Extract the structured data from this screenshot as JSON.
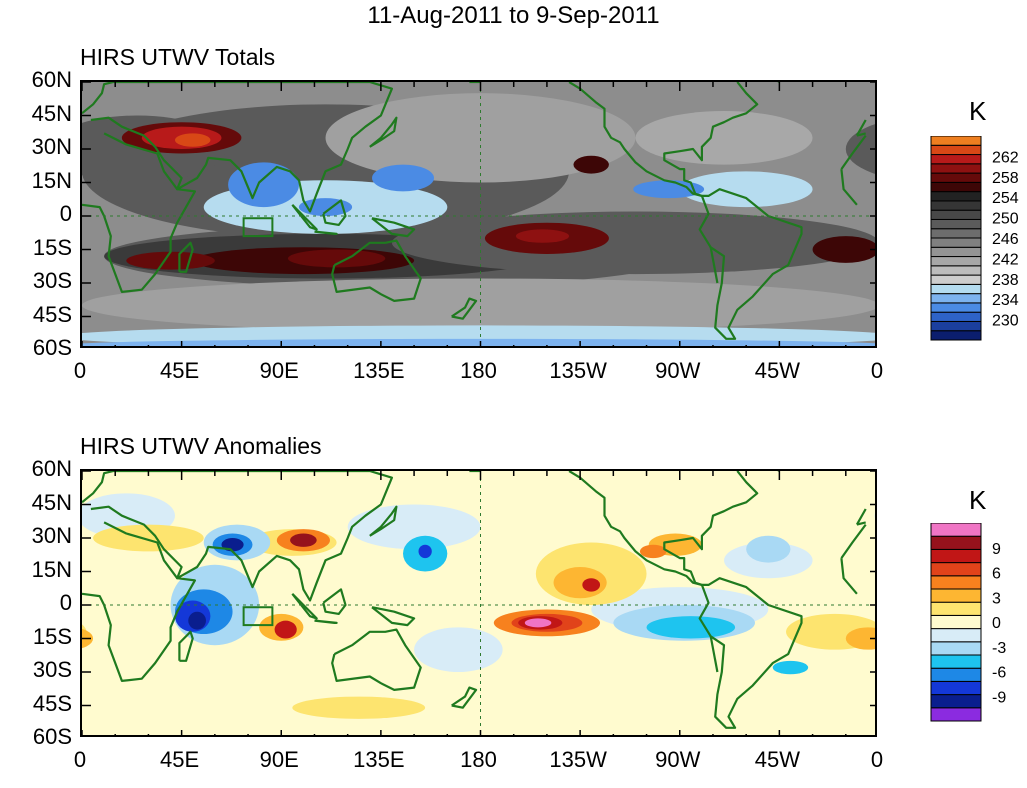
{
  "header": {
    "title": "11-Aug-2011 to 9-Sep-2011"
  },
  "lat_labels": [
    "60N",
    "45N",
    "30N",
    "15N",
    "0",
    "15S",
    "30S",
    "45S",
    "60S"
  ],
  "lon_labels": [
    "0",
    "45E",
    "90E",
    "135E",
    "180",
    "135W",
    "90W",
    "45W",
    "0"
  ],
  "totals": {
    "title": "HIRS UTWV Totals",
    "unit": "K",
    "colorbar": {
      "colors": [
        "#0b1e6e",
        "#1b3f9e",
        "#2e63c7",
        "#4b8be4",
        "#7db3ef",
        "#b4dcf0",
        "#cdcdcd",
        "#bcbcbc",
        "#a7a7a7",
        "#949494",
        "#808080",
        "#6d6d6d",
        "#5b5b5b",
        "#484848",
        "#353535",
        "#222222",
        "#3d0606",
        "#650a0a",
        "#8e1111",
        "#b81a1a",
        "#d84816",
        "#ee7f20"
      ],
      "labels": [
        "262",
        "258",
        "254",
        "250",
        "246",
        "242",
        "238",
        "234",
        "230"
      ]
    },
    "background": "#8d8d8d",
    "features": [
      {
        "c": "#5a5a5a",
        "lon": 110,
        "lat": 20,
        "rx": 110,
        "ry": 30
      },
      {
        "c": "#5a5a5a",
        "lon": 140,
        "lat": -18,
        "rx": 130,
        "ry": 14
      },
      {
        "c": "#3a3a3a",
        "lon": 110,
        "lat": -18,
        "rx": 100,
        "ry": 10
      },
      {
        "c": "#5a5a5a",
        "lon": 250,
        "lat": -12,
        "rx": 110,
        "ry": 14
      },
      {
        "c": "#5a5a5a",
        "lon": 25,
        "lat": 30,
        "rx": 40,
        "ry": 15
      },
      {
        "c": "#a0a0a0",
        "lon": 180,
        "lat": 35,
        "rx": 70,
        "ry": 20
      },
      {
        "c": "#a8a8a8",
        "lon": 290,
        "lat": 35,
        "rx": 40,
        "ry": 12
      },
      {
        "c": "#a0a0a0",
        "lon": 180,
        "lat": -40,
        "rx": 180,
        "ry": 12
      },
      {
        "c": "#b6dcef",
        "lon": 180,
        "lat": -54,
        "rx": 190,
        "ry": 5
      },
      {
        "c": "#7db3ef",
        "lon": 180,
        "lat": -58,
        "rx": 190,
        "ry": 3
      },
      {
        "c": "#b6dcef",
        "lon": 110,
        "lat": 4,
        "rx": 55,
        "ry": 12
      },
      {
        "c": "#b6dcef",
        "lon": 300,
        "lat": 12,
        "rx": 30,
        "ry": 8
      },
      {
        "c": "#4b8be4",
        "lon": 82,
        "lat": 14,
        "rx": 16,
        "ry": 10
      },
      {
        "c": "#4b8be4",
        "lon": 145,
        "lat": 17,
        "rx": 14,
        "ry": 6
      },
      {
        "c": "#4b8be4",
        "lon": 110,
        "lat": 4,
        "rx": 12,
        "ry": 4
      },
      {
        "c": "#4b8be4",
        "lon": 265,
        "lat": 12,
        "rx": 16,
        "ry": 4
      },
      {
        "c": "#650a0a",
        "lon": 45,
        "lat": 35,
        "rx": 27,
        "ry": 7
      },
      {
        "c": "#b81a1a",
        "lon": 45,
        "lat": 35,
        "rx": 18,
        "ry": 5
      },
      {
        "c": "#d84816",
        "lon": 50,
        "lat": 34,
        "rx": 8,
        "ry": 3
      },
      {
        "c": "#3d0606",
        "lon": 100,
        "lat": -20,
        "rx": 50,
        "ry": 6
      },
      {
        "c": "#650a0a",
        "lon": 115,
        "lat": -19,
        "rx": 22,
        "ry": 4
      },
      {
        "c": "#650a0a",
        "lon": 40,
        "lat": -20,
        "rx": 20,
        "ry": 4
      },
      {
        "c": "#650a0a",
        "lon": 210,
        "lat": -10,
        "rx": 28,
        "ry": 7
      },
      {
        "c": "#8e1111",
        "lon": 208,
        "lat": -9,
        "rx": 12,
        "ry": 3
      },
      {
        "c": "#3d0606",
        "lon": 345,
        "lat": -15,
        "rx": 15,
        "ry": 6
      },
      {
        "c": "#3d0606",
        "lon": 230,
        "lat": 23,
        "rx": 8,
        "ry": 4
      }
    ]
  },
  "anomalies": {
    "title": "HIRS UTWV Anomalies",
    "unit": "K",
    "colorbar": {
      "colors": [
        "#8b2be0",
        "#0a1e8e",
        "#1438d8",
        "#1e88e6",
        "#1ec4ef",
        "#a9d9f4",
        "#d8ecf7",
        "#fffbcf",
        "#fde46f",
        "#fdb632",
        "#f7811e",
        "#e1431a",
        "#c11616",
        "#96121c",
        "#f075c5"
      ],
      "labels": [
        "9",
        "6",
        "3",
        "0",
        "-3",
        "-6",
        "-9"
      ]
    },
    "background": "#fffbcf",
    "features": [
      {
        "c": "#d8ecf7",
        "lon": 20,
        "lat": 40,
        "rx": 22,
        "ry": 10
      },
      {
        "c": "#d8ecf7",
        "lon": 150,
        "lat": 35,
        "rx": 30,
        "ry": 10
      },
      {
        "c": "#d8ecf7",
        "lon": 170,
        "lat": -20,
        "rx": 20,
        "ry": 10
      },
      {
        "c": "#d8ecf7",
        "lon": 270,
        "lat": -2,
        "rx": 40,
        "ry": 10
      },
      {
        "c": "#d8ecf7",
        "lon": 310,
        "lat": 20,
        "rx": 20,
        "ry": 8
      },
      {
        "c": "#fde46f",
        "lon": 230,
        "lat": 14,
        "rx": 25,
        "ry": 14
      },
      {
        "c": "#fde46f",
        "lon": 340,
        "lat": -12,
        "rx": 22,
        "ry": 8
      },
      {
        "c": "#fde46f",
        "lon": 125,
        "lat": -46,
        "rx": 30,
        "ry": 5
      },
      {
        "c": "#fde46f",
        "lon": 30,
        "lat": 30,
        "rx": 25,
        "ry": 6
      },
      {
        "c": "#fde46f",
        "lon": 95,
        "lat": 28,
        "rx": 20,
        "ry": 6
      },
      {
        "c": "#fdb632",
        "lon": 225,
        "lat": 10,
        "rx": 12,
        "ry": 7
      },
      {
        "c": "#fdb632",
        "lon": 355,
        "lat": -15,
        "rx": 10,
        "ry": 5
      },
      {
        "c": "#fdb632",
        "lon": 90,
        "lat": -10,
        "rx": 10,
        "ry": 6
      },
      {
        "c": "#fdb632",
        "lon": 268,
        "lat": 27,
        "rx": 12,
        "ry": 5
      },
      {
        "c": "#f7811e",
        "lon": 210,
        "lat": -8,
        "rx": 24,
        "ry": 6
      },
      {
        "c": "#f7811e",
        "lon": 100,
        "lat": 29,
        "rx": 12,
        "ry": 5
      },
      {
        "c": "#f7811e",
        "lon": 258,
        "lat": 24,
        "rx": 6,
        "ry": 3
      },
      {
        "c": "#c11616",
        "lon": 92,
        "lat": -11,
        "rx": 5,
        "ry": 4
      },
      {
        "c": "#e1431a",
        "lon": 210,
        "lat": -8,
        "rx": 16,
        "ry": 4
      },
      {
        "c": "#c11616",
        "lon": 207,
        "lat": -8,
        "rx": 10,
        "ry": 3
      },
      {
        "c": "#f075c5",
        "lon": 206,
        "lat": -8,
        "rx": 6,
        "ry": 2
      },
      {
        "c": "#96121c",
        "lon": 100,
        "lat": 29,
        "rx": 6,
        "ry": 3
      },
      {
        "c": "#c11616",
        "lon": 230,
        "lat": 9,
        "rx": 4,
        "ry": 3
      },
      {
        "c": "#a9d9f4",
        "lon": 60,
        "lat": 0,
        "rx": 20,
        "ry": 18
      },
      {
        "c": "#1e88e6",
        "lon": 55,
        "lat": -3,
        "rx": 13,
        "ry": 10
      },
      {
        "c": "#1438d8",
        "lon": 50,
        "lat": -5,
        "rx": 8,
        "ry": 7
      },
      {
        "c": "#0a1e8e",
        "lon": 52,
        "lat": -7,
        "rx": 4,
        "ry": 4
      },
      {
        "c": "#a9d9f4",
        "lon": 70,
        "lat": 28,
        "rx": 15,
        "ry": 8
      },
      {
        "c": "#1e88e6",
        "lon": 68,
        "lat": 27,
        "rx": 9,
        "ry": 5
      },
      {
        "c": "#0a1e8e",
        "lon": 68,
        "lat": 27,
        "rx": 5,
        "ry": 3
      },
      {
        "c": "#1ec4ef",
        "lon": 155,
        "lat": 23,
        "rx": 10,
        "ry": 8
      },
      {
        "c": "#1438d8",
        "lon": 155,
        "lat": 24,
        "rx": 3,
        "ry": 3
      },
      {
        "c": "#a9d9f4",
        "lon": 272,
        "lat": -8,
        "rx": 32,
        "ry": 8
      },
      {
        "c": "#1ec4ef",
        "lon": 275,
        "lat": -10,
        "rx": 20,
        "ry": 5
      },
      {
        "c": "#a9d9f4",
        "lon": 310,
        "lat": 25,
        "rx": 10,
        "ry": 6
      },
      {
        "c": "#1ec4ef",
        "lon": 320,
        "lat": -28,
        "rx": 8,
        "ry": 3
      }
    ]
  },
  "coastlines": [
    [
      [
        -10,
        36
      ],
      [
        -6,
        43
      ],
      [
        0,
        46
      ],
      [
        5,
        50
      ],
      [
        9,
        55
      ],
      [
        10,
        59
      ],
      [
        14,
        60
      ],
      [
        22,
        60
      ],
      [
        30,
        60
      ],
      [
        50,
        60
      ],
      [
        70,
        60
      ],
      [
        90,
        60
      ],
      [
        110,
        60
      ],
      [
        130,
        60
      ],
      [
        140,
        57
      ],
      [
        135,
        45
      ],
      [
        128,
        40
      ],
      [
        122,
        35
      ],
      [
        120,
        30
      ],
      [
        117,
        23
      ],
      [
        110,
        20
      ],
      [
        106,
        10
      ],
      [
        103,
        2
      ],
      [
        100,
        7
      ],
      [
        98,
        16
      ],
      [
        94,
        20
      ],
      [
        88,
        22
      ],
      [
        80,
        15
      ],
      [
        77,
        8
      ],
      [
        72,
        20
      ],
      [
        67,
        25
      ],
      [
        57,
        26
      ],
      [
        56,
        23
      ],
      [
        52,
        17
      ],
      [
        43,
        12
      ],
      [
        45,
        17
      ],
      [
        37,
        25
      ],
      [
        33,
        31
      ],
      [
        28,
        36
      ],
      [
        18,
        40
      ],
      [
        12,
        44
      ],
      [
        4,
        43
      ],
      [
        -6,
        37
      ],
      [
        -10,
        36
      ]
    ],
    [
      [
        -17,
        21
      ],
      [
        -16,
        12
      ],
      [
        -10,
        5
      ],
      [
        0,
        5
      ],
      [
        8,
        4
      ],
      [
        10,
        0
      ],
      [
        13,
        -9
      ],
      [
        12,
        -18
      ],
      [
        18,
        -34
      ],
      [
        27,
        -33
      ],
      [
        33,
        -26
      ],
      [
        40,
        -16
      ],
      [
        40,
        -10
      ],
      [
        43,
        -3
      ],
      [
        51,
        11
      ],
      [
        43,
        12
      ],
      [
        37,
        20
      ],
      [
        34,
        28
      ],
      [
        20,
        32
      ],
      [
        10,
        37
      ],
      [
        -6,
        36
      ],
      [
        -12,
        28
      ],
      [
        -17,
        21
      ]
    ],
    [
      [
        114,
        -22
      ],
      [
        122,
        -18
      ],
      [
        130,
        -12
      ],
      [
        137,
        -12
      ],
      [
        142,
        -11
      ],
      [
        146,
        -18
      ],
      [
        153,
        -28
      ],
      [
        150,
        -37
      ],
      [
        141,
        -38
      ],
      [
        135,
        -35
      ],
      [
        130,
        -32
      ],
      [
        115,
        -34
      ],
      [
        113,
        -26
      ],
      [
        114,
        -22
      ]
    ],
    [
      [
        44,
        -25
      ],
      [
        47,
        -25
      ],
      [
        50,
        -15
      ],
      [
        49,
        -12
      ],
      [
        44,
        -17
      ],
      [
        44,
        -25
      ]
    ],
    [
      [
        95,
        5
      ],
      [
        106,
        -6
      ],
      [
        103,
        -5
      ],
      [
        95,
        5
      ]
    ],
    [
      [
        105,
        -7
      ],
      [
        115,
        -8
      ],
      [
        114,
        -8
      ],
      [
        105,
        -7
      ]
    ],
    [
      [
        109,
        1
      ],
      [
        117,
        7
      ],
      [
        119,
        0
      ],
      [
        116,
        -4
      ],
      [
        110,
        -3
      ],
      [
        109,
        1
      ]
    ],
    [
      [
        131,
        -1
      ],
      [
        141,
        -3
      ],
      [
        150,
        -6
      ],
      [
        147,
        -9
      ],
      [
        140,
        -8
      ],
      [
        131,
        -1
      ]
    ],
    [
      [
        130,
        31
      ],
      [
        135,
        34
      ],
      [
        141,
        38
      ],
      [
        142,
        44
      ],
      [
        140,
        41
      ],
      [
        135,
        35
      ],
      [
        130,
        31
      ]
    ],
    [
      [
        167,
        -45
      ],
      [
        173,
        -41
      ],
      [
        175,
        -37
      ],
      [
        178,
        -38
      ],
      [
        172,
        -46
      ],
      [
        167,
        -45
      ]
    ],
    [
      [
        -80,
        9
      ],
      [
        -77,
        1
      ],
      [
        -81,
        -6
      ],
      [
        -76,
        -14
      ],
      [
        -70,
        -18
      ],
      [
        -71,
        -30
      ],
      [
        -73,
        -40
      ],
      [
        -74,
        -50
      ],
      [
        -69,
        -55
      ],
      [
        -65,
        -55
      ],
      [
        -68,
        -50
      ],
      [
        -64,
        -42
      ],
      [
        -57,
        -36
      ],
      [
        -48,
        -26
      ],
      [
        -41,
        -22
      ],
      [
        -35,
        -8
      ],
      [
        -35,
        -5
      ],
      [
        -50,
        0
      ],
      [
        -60,
        8
      ],
      [
        -72,
        12
      ],
      [
        -77,
        9
      ],
      [
        -80,
        9
      ]
    ],
    [
      [
        -80,
        9
      ],
      [
        -84,
        10
      ],
      [
        -87,
        13
      ],
      [
        -92,
        15
      ],
      [
        -97,
        16
      ],
      [
        -105,
        20
      ],
      [
        -110,
        24
      ],
      [
        -115,
        30
      ],
      [
        -117,
        33
      ],
      [
        -121,
        35
      ],
      [
        -124,
        40
      ],
      [
        -124,
        48
      ],
      [
        -128,
        51
      ],
      [
        -135,
        57
      ],
      [
        -140,
        60
      ]
    ],
    [
      [
        -80,
        9
      ],
      [
        -83,
        10
      ],
      [
        -85,
        15
      ],
      [
        -88,
        16
      ],
      [
        -88,
        21
      ],
      [
        -90,
        21
      ],
      [
        -97,
        25
      ],
      [
        -97,
        28
      ],
      [
        -90,
        29
      ],
      [
        -84,
        30
      ],
      [
        -80,
        25
      ],
      [
        -80,
        31
      ],
      [
        -76,
        35
      ],
      [
        -75,
        40
      ],
      [
        -70,
        42
      ],
      [
        -66,
        44
      ],
      [
        -60,
        46
      ],
      [
        -55,
        50
      ],
      [
        -60,
        55
      ],
      [
        -64,
        60
      ]
    ],
    [
      [
        -76,
        -14
      ],
      [
        -73,
        -30
      ]
    ],
    [
      [
        -45,
        60
      ],
      [
        -53,
        65
      ],
      [
        -45,
        60
      ]
    ],
    [
      [
        175,
        60
      ],
      [
        180,
        60
      ]
    ]
  ]
}
